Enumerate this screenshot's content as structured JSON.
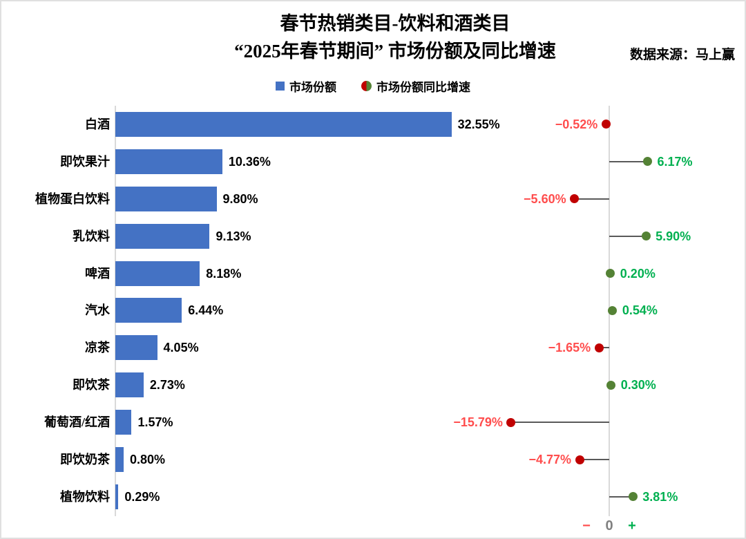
{
  "header": {
    "title_line1": "春节热销类目-饮料和酒类目",
    "title_line2": "“2025年春节期间” 市场份额及同比增速",
    "source": "数据来源：马上赢"
  },
  "legend": {
    "share_label": "市场份额",
    "growth_label": "市场份额同比增速"
  },
  "axis_footer": {
    "minus": "−",
    "zero": "0",
    "plus": "+"
  },
  "colors": {
    "bar_blue": "#4472C4",
    "negative_dot": "#C00000",
    "positive_dot": "#548235",
    "negative_text": "#FF4D4D",
    "positive_text": "#00B050",
    "connector": "#595959",
    "axis_line": "#D9D9D9",
    "zero_gray": "#808080"
  },
  "chart_data": {
    "type": "bar",
    "orientation": "horizontal",
    "title": "春节热销类目-饮料和酒类目 “2025年春节期间” 市场份额及同比增速",
    "categories": [
      "白酒",
      "即饮果汁",
      "植物蛋白饮料",
      "乳饮料",
      "啤酒",
      "汽水",
      "凉茶",
      "即饮茶",
      "葡萄酒/红酒",
      "即饮奶茶",
      "植物饮料"
    ],
    "series": [
      {
        "name": "市场份额",
        "unit": "%",
        "values": [
          32.55,
          10.36,
          9.8,
          9.13,
          8.18,
          6.44,
          4.05,
          2.73,
          1.57,
          0.8,
          0.29
        ],
        "labels": [
          "32.55%",
          "10.36%",
          "9.80%",
          "9.13%",
          "8.18%",
          "6.44%",
          "4.05%",
          "2.73%",
          "1.57%",
          "0.80%",
          "0.29%"
        ]
      },
      {
        "name": "市场份额同比增速",
        "unit": "%",
        "values": [
          -0.52,
          6.17,
          -5.6,
          5.9,
          0.2,
          0.54,
          -1.65,
          0.3,
          -15.79,
          -4.77,
          3.81
        ],
        "labels": [
          "−0.52%",
          "6.17%",
          "−5.60%",
          "5.90%",
          "0.20%",
          "0.54%",
          "−1.65%",
          "0.30%",
          "−15.79%",
          "−4.77%",
          "3.81%"
        ]
      }
    ],
    "share_axis_range": [
      0,
      33
    ],
    "growth_axis_range": [
      -16,
      7
    ],
    "grid": false,
    "legend_position": "top"
  }
}
